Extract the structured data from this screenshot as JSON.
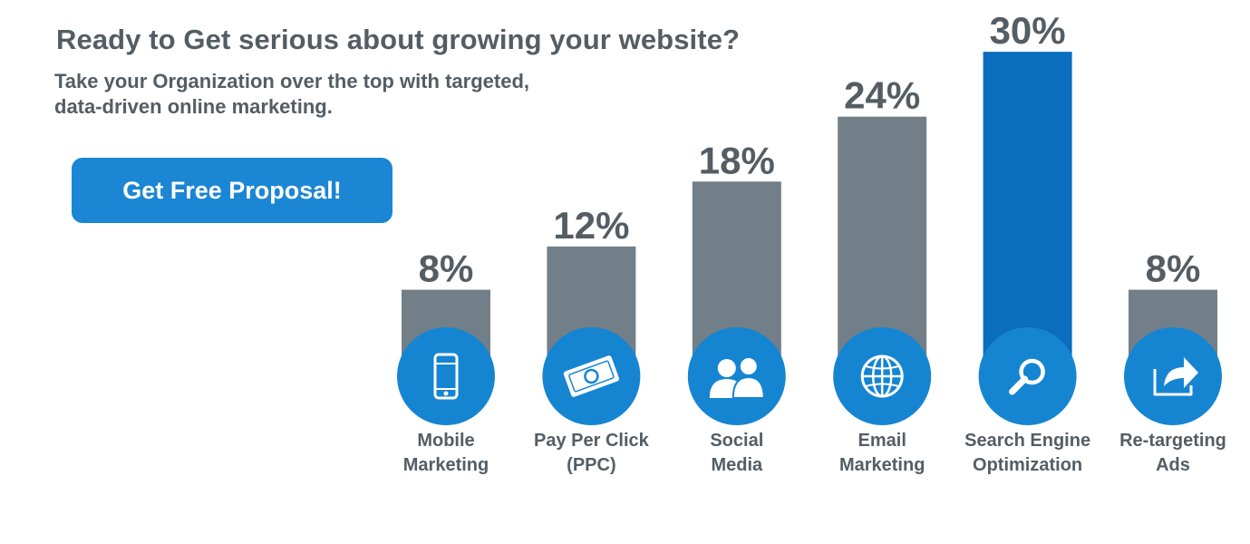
{
  "header": {
    "title": "Ready to Get serious about growing your website?",
    "subtitle_lines": [
      "Take your Organization over the top with targeted,",
      "data-driven online marketing."
    ]
  },
  "cta": {
    "label": "Get Free Proposal!"
  },
  "colors": {
    "bar": "#737f88",
    "highlight_bar": "#0a6dbd",
    "icon_circle": "#1585d2",
    "text": "#555d64"
  },
  "chart_data": {
    "type": "bar",
    "categories": [
      "Mobile Marketing",
      "Pay Per Click (PPC)",
      "Social Media",
      "Email Marketing",
      "Search Engine Optimization",
      "Re-targeting Ads"
    ],
    "category_lines": [
      [
        "Mobile",
        "Marketing"
      ],
      [
        "Pay Per Click",
        "(PPC)"
      ],
      [
        "Social",
        "Media"
      ],
      [
        "Email",
        "Marketing"
      ],
      [
        "Search Engine",
        "Optimization"
      ],
      [
        "Re-targeting",
        "Ads"
      ]
    ],
    "values": [
      8,
      12,
      18,
      24,
      30,
      8
    ],
    "value_labels": [
      "8%",
      "12%",
      "18%",
      "24%",
      "30%",
      "8%"
    ],
    "highlight_index": 4,
    "icons": [
      "mobile-phone-icon",
      "dollar-bill-icon",
      "people-icon",
      "globe-icon",
      "magnifier-icon",
      "share-arrow-icon"
    ],
    "unit": "%",
    "ylim": [
      0,
      30
    ],
    "grid": false,
    "legend": "none"
  }
}
